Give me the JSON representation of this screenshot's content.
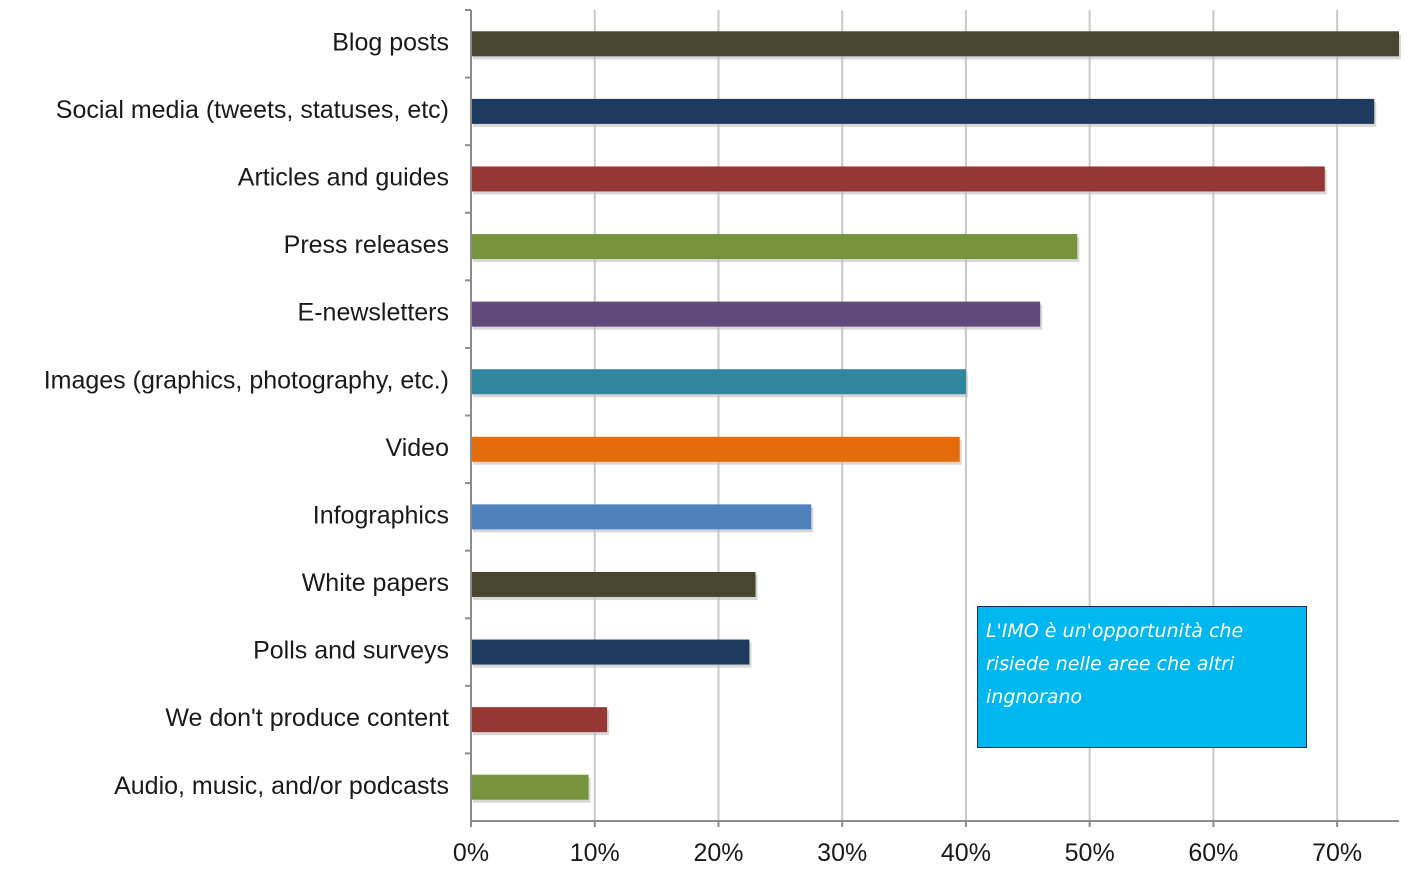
{
  "chart_data": {
    "type": "bar",
    "orientation": "horizontal",
    "categories": [
      "Blog posts",
      "Social media (tweets, statuses, etc)",
      "Articles and guides",
      "Press releases",
      "E-newsletters",
      "Images (graphics, photography, etc.)",
      "Video",
      "Infographics",
      "White papers",
      "Polls and surveys",
      "We don't produce content",
      "Audio, music, and/or podcasts"
    ],
    "values": [
      75,
      73,
      69,
      49,
      46,
      40,
      39.5,
      27.5,
      23,
      22.5,
      11,
      9.5
    ],
    "colors": [
      "#4a4530",
      "#1f3a5f",
      "#953735",
      "#77933c",
      "#604a7b",
      "#31859c",
      "#e46c0a",
      "#4f81bd",
      "#4a4530",
      "#1f3a5f",
      "#953735",
      "#77933c"
    ],
    "xlim": [
      0,
      75
    ],
    "xticks": [
      0,
      10,
      20,
      30,
      40,
      50,
      60,
      70
    ],
    "xtick_labels": [
      "0%",
      "10%",
      "20%",
      "30%",
      "40%",
      "50%",
      "60%",
      "70%"
    ],
    "grid": "vertical",
    "title": "",
    "xlabel": "",
    "ylabel": ""
  },
  "annotation": {
    "text": "L'IMO è un'opportunità che risiede nelle aree che altri ingnorano",
    "background": "#00b7f0"
  }
}
